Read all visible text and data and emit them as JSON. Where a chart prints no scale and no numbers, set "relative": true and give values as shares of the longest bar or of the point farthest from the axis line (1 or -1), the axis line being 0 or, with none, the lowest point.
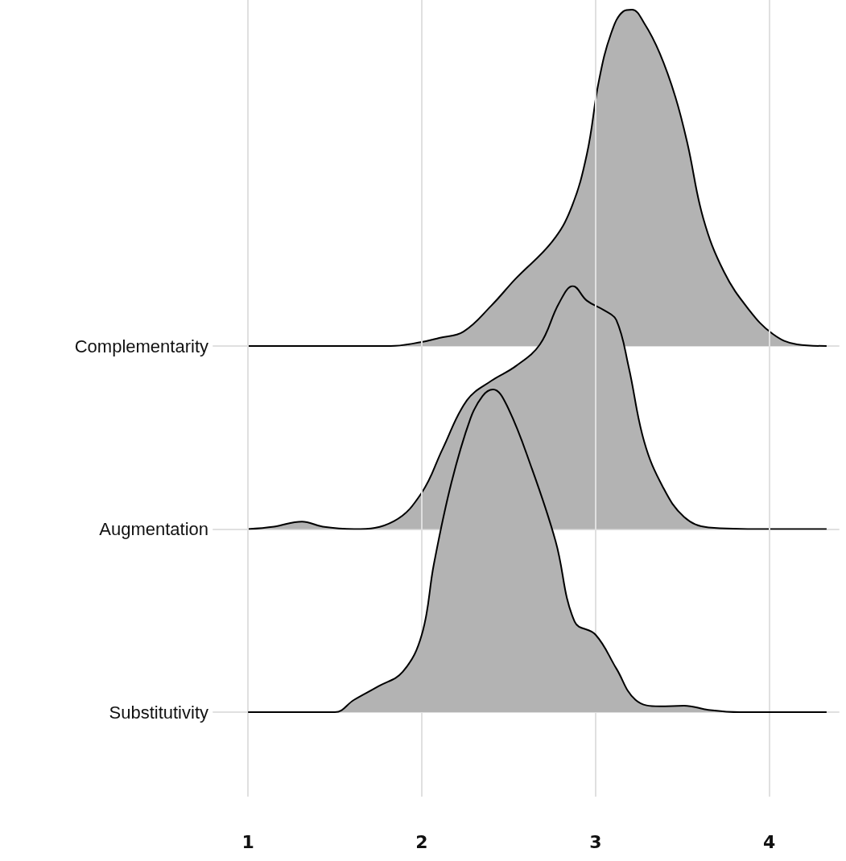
{
  "chart_data": [
    {
      "type": "area",
      "relative": true,
      "xlim": [
        0.8,
        4.4
      ],
      "xticks": [
        1,
        2,
        3,
        4
      ],
      "grid": true,
      "tick_labels": false,
      "series": [
        {
          "name": "Complementarity",
          "color": "#b3b3b3",
          "x": [
            1.0,
            1.82,
            2.0,
            2.1,
            2.24,
            2.4,
            2.54,
            2.75,
            2.86,
            2.95,
            3.02,
            3.09,
            3.16,
            3.21,
            3.28,
            3.37,
            3.46,
            3.53,
            3.62,
            3.74,
            3.88,
            4.02,
            4.16,
            4.33
          ],
          "values": [
            0,
            0,
            0.012,
            0.024,
            0.043,
            0.12,
            0.2,
            0.31,
            0.41,
            0.57,
            0.79,
            0.93,
            0.995,
            1,
            0.96,
            0.87,
            0.74,
            0.6,
            0.38,
            0.22,
            0.11,
            0.036,
            0.005,
            0
          ]
        }
      ]
    },
    {
      "type": "area",
      "relative": true,
      "xlim": [
        0.8,
        4.4
      ],
      "xticks": [
        1,
        2,
        3,
        4
      ],
      "grid": true,
      "tick_labels": false,
      "series": [
        {
          "name": "Augmentation",
          "color": "#b3b3b3",
          "x": [
            1.0,
            1.15,
            1.31,
            1.43,
            1.61,
            1.84,
            2.0,
            2.12,
            2.26,
            2.4,
            2.54,
            2.68,
            2.79,
            2.87,
            2.95,
            3.05,
            3.12,
            3.19,
            3.28,
            3.39,
            3.51,
            3.65,
            3.97,
            4.33
          ],
          "values": [
            0,
            0.01,
            0.031,
            0.01,
            0,
            0.033,
            0.15,
            0.33,
            0.53,
            0.61,
            0.67,
            0.76,
            0.93,
            1,
            0.94,
            0.9,
            0.86,
            0.67,
            0.36,
            0.17,
            0.05,
            0.007,
            0,
            0
          ]
        }
      ]
    },
    {
      "type": "area",
      "relative": true,
      "xlim": [
        0.8,
        4.4
      ],
      "xticks": [
        1,
        2,
        3,
        4
      ],
      "grid": true,
      "tick_labels": "x",
      "series": [
        {
          "name": "Substitutivity",
          "color": "#b3b3b3",
          "x": [
            1.0,
            1.5,
            1.61,
            1.75,
            1.89,
            2.0,
            2.07,
            2.17,
            2.28,
            2.35,
            2.41,
            2.49,
            2.63,
            2.77,
            2.88,
            3.0,
            3.12,
            3.23,
            3.37,
            3.51,
            3.65,
            3.83,
            4.33
          ],
          "values": [
            0,
            0,
            0.038,
            0.08,
            0.125,
            0.24,
            0.46,
            0.71,
            0.91,
            0.98,
            1,
            0.95,
            0.76,
            0.53,
            0.28,
            0.24,
            0.135,
            0.038,
            0.018,
            0.02,
            0.007,
            0,
            0
          ]
        }
      ]
    }
  ]
}
